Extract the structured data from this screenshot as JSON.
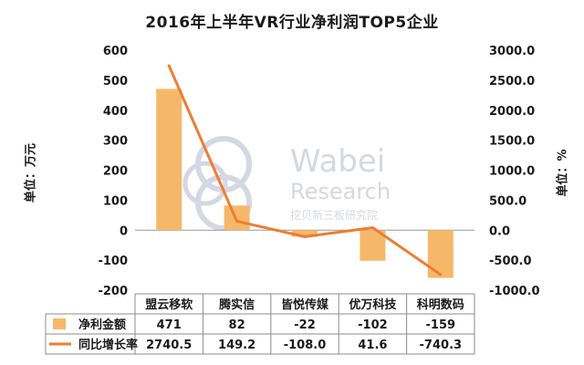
{
  "chart_data": {
    "type": "bar+line",
    "title": "2016年上半年VR行业净利润TOP5企业",
    "categories": [
      "盟云移软",
      "腾实信",
      "皆悦传媒",
      "优万科技",
      "科明数码"
    ],
    "series": [
      {
        "name": "净利金额",
        "type": "bar",
        "axis": "left",
        "color": "#F5B86B",
        "values": [
          471,
          82,
          -22,
          -102,
          -159
        ],
        "labels": [
          "471",
          "82",
          "-22",
          "-102",
          "-159"
        ]
      },
      {
        "name": "同比增长率",
        "type": "line",
        "axis": "right",
        "color": "#ED7D31",
        "values": [
          2740.5,
          149.2,
          -108.0,
          41.6,
          -740.3
        ],
        "labels": [
          "2740.5",
          "149.2",
          "-108.0",
          "41.6",
          "-740.3"
        ]
      }
    ],
    "ylabel_left": "单位：万元",
    "ylabel_right": "单位：%",
    "ylim_left": [
      -200,
      600
    ],
    "ylim_right": [
      -1000,
      3000
    ],
    "yticks_left": [
      "600",
      "500",
      "400",
      "300",
      "200",
      "100",
      "0",
      "-100",
      "-200"
    ],
    "yticks_right": [
      "3000.0",
      "2500.0",
      "2000.0",
      "1500.0",
      "1000.0",
      "500.0",
      "0.0",
      "-500.0",
      "-1000.0"
    ],
    "grid": false,
    "legend": "data-table"
  },
  "watermark": {
    "brand": "Wabei",
    "sub": "Research",
    "cn": "挖贝新三板研究院"
  }
}
